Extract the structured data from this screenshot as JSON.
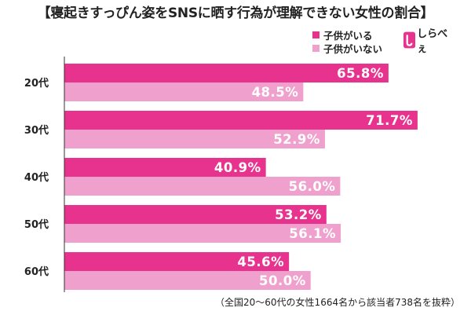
{
  "title": "【寝起きすっぴん姿をSNSに晒す行為が理解できない女性の割合】",
  "note": "（全国20～60代の女性1664名から該当者738名を抜粋）",
  "logo": {
    "text": "しらべぇ",
    "icon": "logo-letter-icon"
  },
  "colors": {
    "series1": "#e8338e",
    "series2": "#f0a0cc",
    "axis": "#333333",
    "label": "#ffffff"
  },
  "chart_data": {
    "type": "bar",
    "orientation": "horizontal",
    "categories": [
      "20代",
      "30代",
      "40代",
      "50代",
      "60代"
    ],
    "series": [
      {
        "name": "子供がいる",
        "values": [
          65.8,
          71.7,
          40.9,
          53.2,
          45.6
        ]
      },
      {
        "name": "子供がいない",
        "values": [
          48.5,
          52.9,
          56.0,
          56.1,
          50.0
        ]
      }
    ],
    "value_format": "0.0%",
    "xlim": [
      0,
      80
    ],
    "grid": false,
    "legend_position": "top-right"
  }
}
